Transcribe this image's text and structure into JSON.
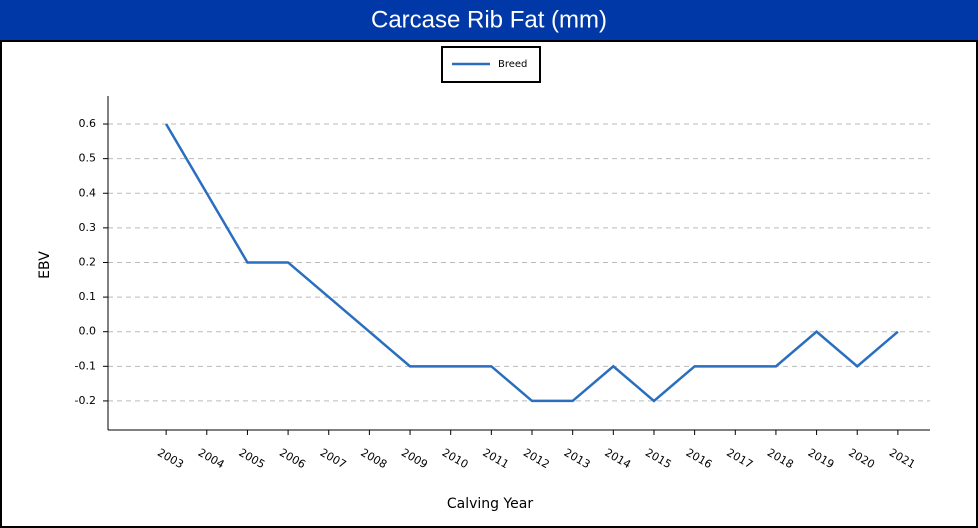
{
  "chart_data": {
    "type": "line",
    "title": "Carcase Rib Fat (mm)",
    "x_label": "Calving Year",
    "y_label": "EBV",
    "x": [
      2003,
      2004,
      2005,
      2006,
      2007,
      2008,
      2009,
      2010,
      2011,
      2012,
      2013,
      2014,
      2015,
      2016,
      2017,
      2018,
      2019,
      2020,
      2021
    ],
    "series": [
      {
        "name": "Breed",
        "color": "#2a6ebf",
        "values": [
          0.6,
          0.4,
          0.2,
          0.2,
          0.1,
          0.0,
          -0.1,
          -0.1,
          -0.1,
          -0.2,
          -0.2,
          -0.1,
          -0.2,
          -0.1,
          -0.1,
          -0.1,
          0.0,
          -0.1,
          0.0
        ]
      }
    ],
    "xlim": [
      2001.57,
      2021.79
    ],
    "xticks": [
      2003,
      2004,
      2005,
      2006,
      2007,
      2008,
      2009,
      2010,
      2011,
      2012,
      2013,
      2014,
      2015,
      2016,
      2017,
      2018,
      2019,
      2020,
      2021
    ],
    "ylim": [
      -0.284,
      0.681
    ],
    "yticks": [
      0.6,
      0.5,
      0.4,
      0.3,
      0.2,
      0.1,
      {
        "value": 0,
        "label": "0.0"
      },
      -0.1,
      -0.2
    ],
    "grid": true,
    "legend": "top"
  }
}
